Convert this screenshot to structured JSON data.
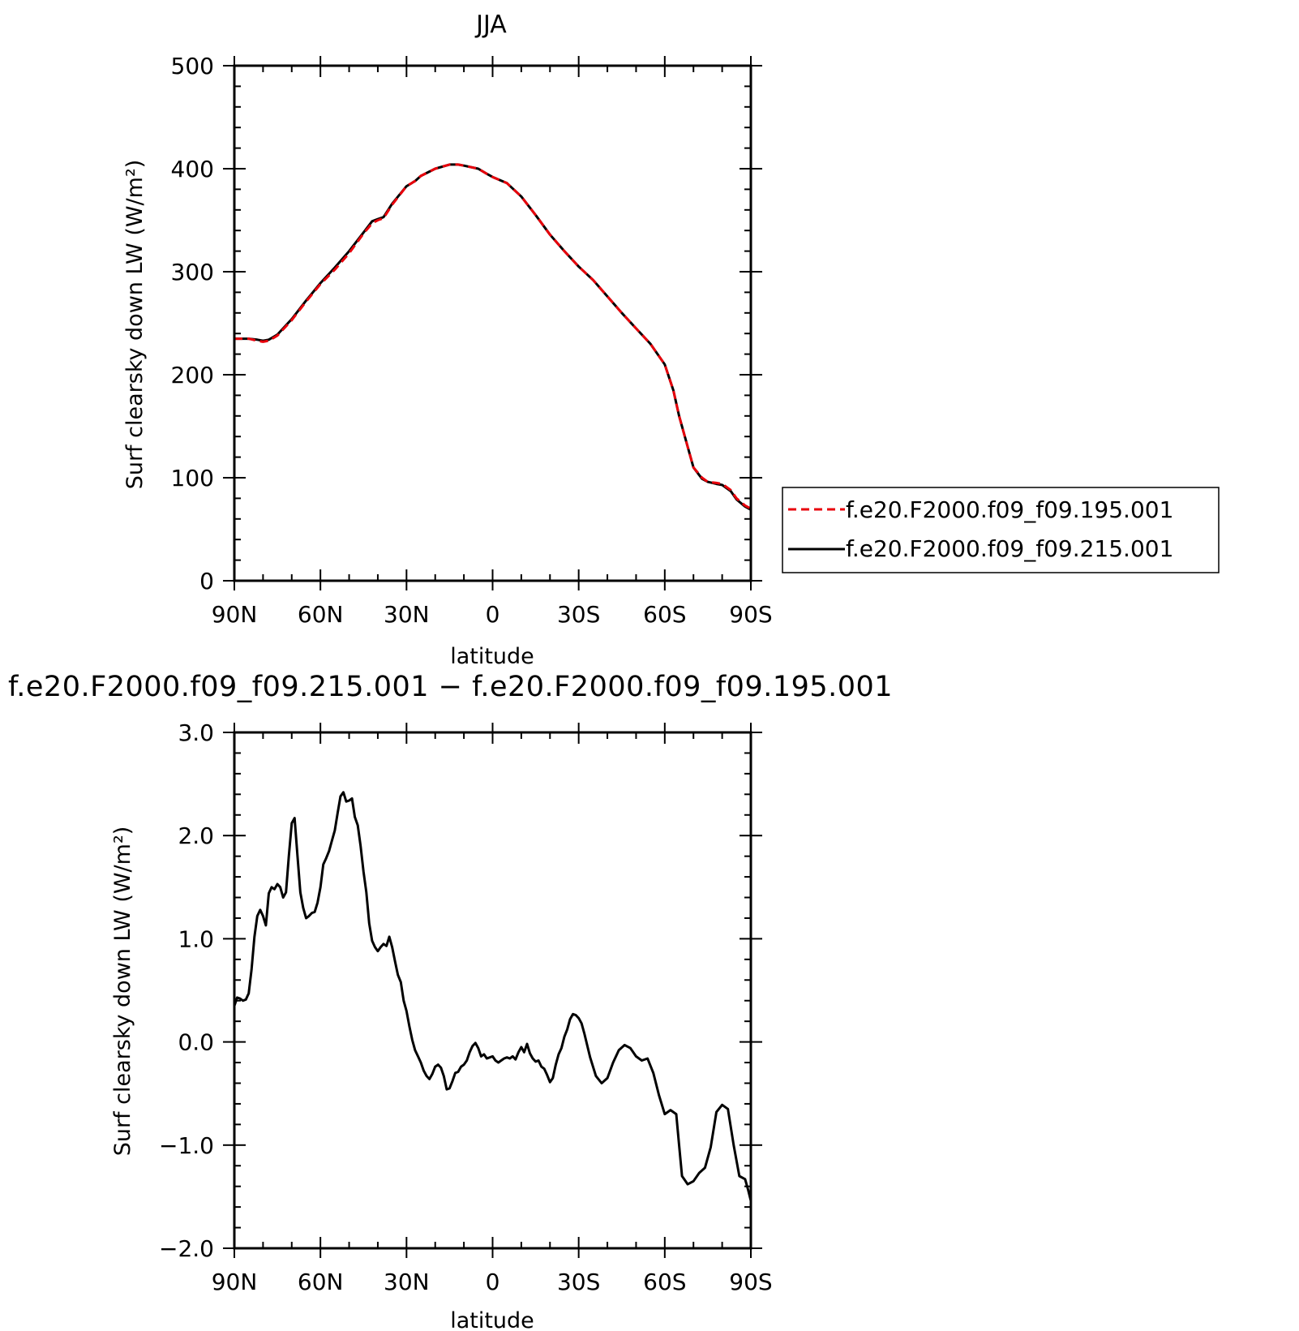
{
  "colors": {
    "run_a": "#e8000b",
    "run_b": "#000000",
    "axis": "#000000"
  },
  "chart_data": [
    {
      "type": "line",
      "title": "JJA",
      "xlabel": "latitude",
      "ylabel": "Surf clearsky down LW (W/m²)",
      "xlim": [
        90,
        -90
      ],
      "ylim": [
        0,
        500
      ],
      "x_ticks": [
        90,
        60,
        30,
        0,
        -30,
        -60,
        -90
      ],
      "x_tick_labels": [
        "90N",
        "60N",
        "30N",
        "0",
        "30S",
        "60S",
        "90S"
      ],
      "y_ticks": [
        0,
        100,
        200,
        300,
        400,
        500
      ],
      "y_tick_labels": [
        "0",
        "100",
        "200",
        "300",
        "400",
        "500"
      ],
      "grid": false,
      "legend_position": "right",
      "x": [
        90,
        85,
        82,
        80,
        78,
        75,
        70,
        65,
        60,
        55,
        50,
        45,
        42,
        40,
        38,
        35,
        30,
        27,
        25,
        20,
        15,
        12,
        10,
        5,
        2,
        0,
        -5,
        -10,
        -15,
        -20,
        -25,
        -30,
        -35,
        -40,
        -45,
        -50,
        -55,
        -60,
        -63,
        -65,
        -68,
        -70,
        -73,
        -75,
        -78,
        -80,
        -83,
        -85,
        -88,
        -90
      ],
      "series": [
        {
          "name": "f.e20.F2000.f09_f09.195.001",
          "style": "dashed",
          "values": [
            235,
            235,
            233,
            232,
            233,
            238,
            253,
            271,
            288,
            302,
            318,
            337,
            347,
            350,
            352,
            365,
            383,
            388,
            393,
            400,
            404,
            404,
            403,
            400,
            395,
            392,
            386,
            373,
            355,
            336,
            320,
            305,
            292,
            276,
            260,
            245,
            230,
            210,
            185,
            160,
            130,
            110,
            100,
            96,
            95,
            94,
            88,
            80,
            73,
            70
          ]
        },
        {
          "name": "f.e20.F2000.f09_f09.215.001",
          "style": "solid",
          "values": [
            235,
            235,
            234,
            233,
            234,
            239,
            254,
            272,
            289,
            304,
            320,
            338,
            349,
            351,
            353,
            366,
            383,
            388,
            393,
            400,
            404,
            404,
            403,
            400,
            395,
            392,
            386,
            373,
            355,
            336,
            320,
            305,
            292,
            276,
            260,
            245,
            230,
            210,
            185,
            160,
            130,
            110,
            99,
            96,
            94,
            93,
            87,
            79,
            72,
            69
          ]
        }
      ]
    },
    {
      "type": "line",
      "title": "f.e20.F2000.f09_f09.215.001 − f.e20.F2000.f09_f09.195.001",
      "xlabel": "latitude",
      "ylabel": "Surf clearsky down LW (W/m²)",
      "xlim": [
        90,
        -90
      ],
      "ylim": [
        -2.0,
        3.0
      ],
      "x_ticks": [
        90,
        60,
        30,
        0,
        -30,
        -60,
        -90
      ],
      "x_tick_labels": [
        "90N",
        "60N",
        "30N",
        "0",
        "30S",
        "60S",
        "90S"
      ],
      "y_ticks": [
        -2.0,
        -1.0,
        0.0,
        1.0,
        2.0,
        3.0
      ],
      "y_tick_labels": [
        "−2.0",
        "−1.0",
        "0.0",
        "1.0",
        "2.0",
        "3.0"
      ],
      "grid": false,
      "x": [
        90,
        89,
        88,
        87,
        86,
        85,
        84,
        83,
        82,
        81,
        80,
        79,
        78,
        77,
        76,
        75,
        74,
        73,
        72,
        71,
        70,
        69,
        68,
        67,
        66,
        65,
        64,
        63,
        62,
        61,
        60,
        59,
        58,
        57,
        56,
        55,
        54,
        53,
        52,
        51,
        50,
        49,
        48,
        47,
        46,
        45,
        44,
        43,
        42,
        41,
        40,
        39,
        38,
        37,
        36,
        35,
        34,
        33,
        32,
        31,
        30,
        29,
        28,
        27,
        26,
        25,
        24,
        23,
        22,
        21,
        20,
        19,
        18,
        17,
        16,
        15,
        14,
        13,
        12,
        11,
        10,
        9,
        8,
        7,
        6,
        5,
        4,
        3,
        2,
        1,
        0,
        -1,
        -2,
        -3,
        -4,
        -5,
        -6,
        -7,
        -8,
        -9,
        -10,
        -11,
        -12,
        -13,
        -14,
        -15,
        -16,
        -17,
        -18,
        -19,
        -20,
        -21,
        -22,
        -23,
        -24,
        -25,
        -26,
        -27,
        -28,
        -29,
        -30,
        -31,
        -32,
        -34,
        -36,
        -38,
        -40,
        -42,
        -44,
        -46,
        -48,
        -50,
        -52,
        -54,
        -56,
        -58,
        -60,
        -62,
        -64,
        -65,
        -66,
        -67,
        -68,
        -70,
        -72,
        -74,
        -76,
        -78,
        -80,
        -82,
        -84,
        -86,
        -88,
        -89,
        -90
      ],
      "series": [
        {
          "name": "",
          "style": "solid",
          "values": [
            0.35,
            0.43,
            0.42,
            0.4,
            0.41,
            0.47,
            0.7,
            1.02,
            1.22,
            1.28,
            1.22,
            1.13,
            1.44,
            1.5,
            1.48,
            1.53,
            1.5,
            1.4,
            1.45,
            1.8,
            2.12,
            2.17,
            1.8,
            1.45,
            1.3,
            1.2,
            1.22,
            1.25,
            1.26,
            1.35,
            1.5,
            1.72,
            1.78,
            1.85,
            1.95,
            2.05,
            2.22,
            2.38,
            2.42,
            2.33,
            2.34,
            2.36,
            2.18,
            2.1,
            1.9,
            1.65,
            1.45,
            1.15,
            0.98,
            0.92,
            0.88,
            0.92,
            0.95,
            0.93,
            1.02,
            0.92,
            0.78,
            0.65,
            0.58,
            0.4,
            0.3,
            0.15,
            0.02,
            -0.08,
            -0.14,
            -0.2,
            -0.28,
            -0.33,
            -0.36,
            -0.31,
            -0.24,
            -0.22,
            -0.25,
            -0.33,
            -0.46,
            -0.45,
            -0.38,
            -0.3,
            -0.29,
            -0.24,
            -0.22,
            -0.18,
            -0.1,
            -0.04,
            -0.01,
            -0.06,
            -0.14,
            -0.12,
            -0.16,
            -0.15,
            -0.14,
            -0.18,
            -0.2,
            -0.18,
            -0.16,
            -0.15,
            -0.16,
            -0.14,
            -0.17,
            -0.1,
            -0.05,
            -0.1,
            -0.02,
            -0.11,
            -0.16,
            -0.19,
            -0.18,
            -0.24,
            -0.26,
            -0.32,
            -0.39,
            -0.35,
            -0.22,
            -0.12,
            -0.06,
            0.05,
            0.12,
            0.22,
            0.27,
            0.26,
            0.23,
            0.18,
            0.08,
            -0.15,
            -0.33,
            -0.4,
            -0.35,
            -0.2,
            -0.08,
            -0.03,
            -0.06,
            -0.14,
            -0.18,
            -0.16,
            -0.3,
            -0.52,
            -0.7,
            -0.66,
            -0.7,
            -1.0,
            -1.3,
            -1.34,
            -1.38,
            -1.35,
            -1.27,
            -1.22,
            -1.02,
            -0.68,
            -0.61,
            -0.65,
            -1.0,
            -1.3,
            -1.33,
            -1.43,
            -1.54
          ]
        }
      ]
    }
  ]
}
